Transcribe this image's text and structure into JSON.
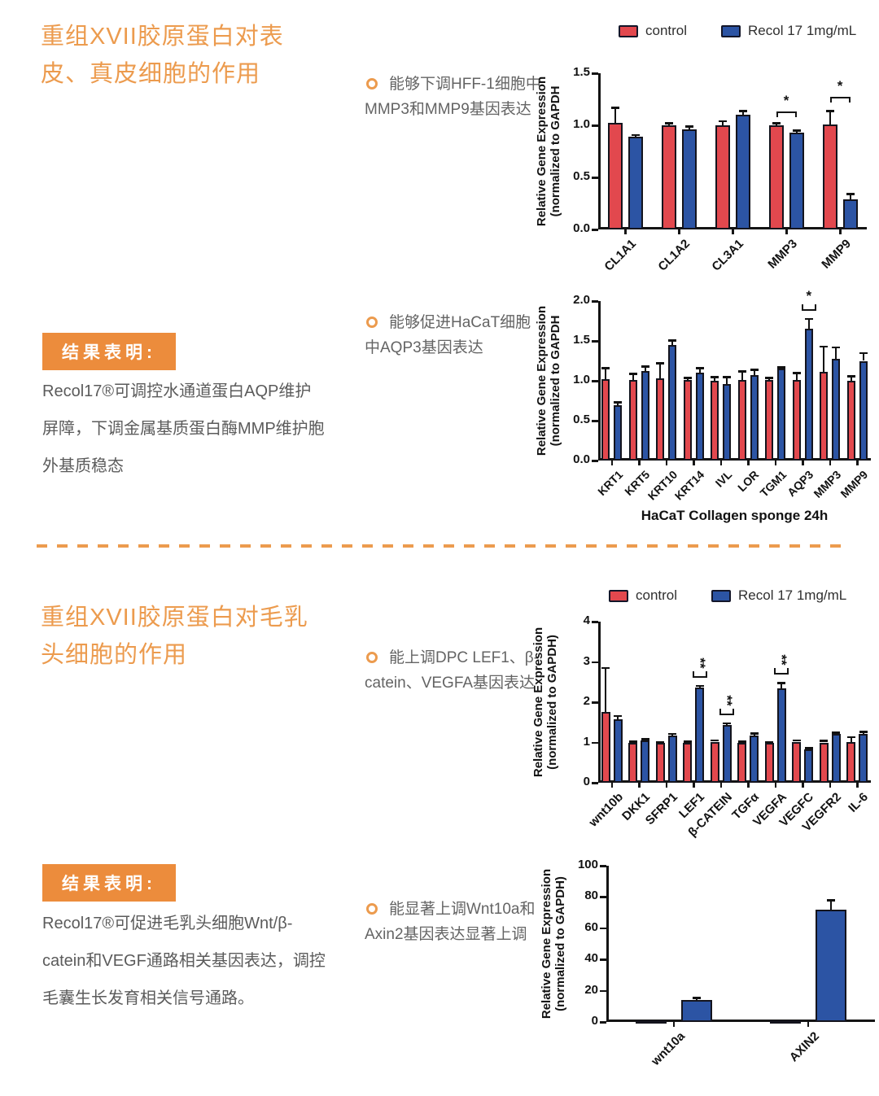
{
  "colors": {
    "accent": "#EC9B4E",
    "box_bg": "#EC8C3C",
    "control": "#E2484E",
    "recol": "#2C54A4"
  },
  "section1": {
    "title": "重组XVII胶原蛋白对表皮、真皮细胞的作用",
    "legend": {
      "control": "control",
      "recol": "Recol 17 1mg/mL"
    },
    "bullet1": "能够下调HFF-1细胞中MMP3和MMP9基因表达",
    "bullet2": "能够促进HaCaT细胞中AQP3基因表达",
    "result_label": "结果表明:",
    "result_text": "Recol17®可调控水通道蛋白AQP维护屏障，下调金属基质蛋白酶MMP维护胞外基质稳态"
  },
  "section2": {
    "title": "重组XVII胶原蛋白对毛乳头细胞的作用",
    "legend": {
      "control": "control",
      "recol": "Recol 17 1mg/mL"
    },
    "bullet3": "能上调DPC LEF1、β-catein、VEGFA基因表达",
    "bullet4": "能显著上调Wnt10a和Axin2基因表达显著上调",
    "result_label": "结果表明:",
    "result_text": "Recol17®可促进毛乳头细胞Wnt/β-catein和VEGF通路相关基因表达，调控毛囊生长发育相关信号通路。"
  },
  "chart_data": [
    {
      "id": "hff",
      "type": "bar",
      "categories": [
        "CL1A1",
        "CL1A2",
        "CL3A1",
        "MMP3",
        "MMP9"
      ],
      "series": [
        {
          "name": "control",
          "color": "#E2484E",
          "values": [
            1.02,
            1.0,
            1.0,
            1.0,
            1.01
          ],
          "errors": [
            0.15,
            0.02,
            0.04,
            0.02,
            0.13
          ]
        },
        {
          "name": "Recol 17 1mg/mL",
          "color": "#2C54A4",
          "values": [
            0.89,
            0.96,
            1.1,
            0.93,
            0.29
          ],
          "errors": [
            0.02,
            0.03,
            0.04,
            0.02,
            0.05
          ]
        }
      ],
      "ylabel_lines": [
        "Relative Gene Expression",
        "(normalized to GAPDH"
      ],
      "ylim": [
        0,
        1.5
      ],
      "yticks": [
        "0.0",
        "0.5",
        "1.0",
        "1.5"
      ],
      "grid": false,
      "significance": [
        {
          "category": "MMP3",
          "label": "*",
          "style": "pair",
          "y": 1.13
        },
        {
          "category": "MMP9",
          "label": "*",
          "style": "pair",
          "y": 1.27
        }
      ]
    },
    {
      "id": "hacat",
      "type": "bar",
      "categories": [
        "KRT1",
        "KRT5",
        "KRT10",
        "KRT14",
        "IVL",
        "LOR",
        "TGM1",
        "AQP3",
        "MMP3",
        "MMP9"
      ],
      "series": [
        {
          "name": "control",
          "color": "#E2484E",
          "values": [
            1.02,
            1.01,
            1.03,
            1.01,
            1.0,
            1.01,
            1.01,
            1.01,
            1.11,
            1.0
          ],
          "errors": [
            0.14,
            0.08,
            0.19,
            0.03,
            0.05,
            0.11,
            0.03,
            0.09,
            0.32,
            0.06
          ]
        },
        {
          "name": "Recol 17 1mg/mL",
          "color": "#2C54A4",
          "values": [
            0.69,
            1.12,
            1.45,
            1.1,
            0.96,
            1.07,
            1.15,
            1.65,
            1.28,
            1.25
          ],
          "errors": [
            0.04,
            0.06,
            0.06,
            0.06,
            0.09,
            0.07,
            0.02,
            0.13,
            0.14,
            0.1
          ]
        }
      ],
      "ylabel_lines": [
        "Relative Gene Expression",
        "(normalized to GAPDH"
      ],
      "xlabel": "HaCaT  Collagen sponge 24h",
      "ylim": [
        0,
        2.0
      ],
      "yticks": [
        "0.0",
        "0.5",
        "1.0",
        "1.5",
        "2.0"
      ],
      "grid": false,
      "significance": [
        {
          "category": "AQP3",
          "label": "*",
          "style": "above"
        }
      ]
    },
    {
      "id": "dpc",
      "type": "bar",
      "categories": [
        "wnt10b",
        "DKK1",
        "SFRP1",
        "LEF1",
        "β-CATEIN",
        "TGFα",
        "VEGFA",
        "VEGFC",
        "VEGFR2",
        "IL-6"
      ],
      "series": [
        {
          "name": "control",
          "color": "#E2484E",
          "values": [
            1.75,
            1.0,
            1.0,
            1.0,
            1.02,
            1.0,
            1.0,
            1.02,
            1.0,
            1.02
          ],
          "errors": [
            1.1,
            0.03,
            0.02,
            0.03,
            0.04,
            0.03,
            0.02,
            0.04,
            0.05,
            0.12
          ]
        },
        {
          "name": "Recol 17 1mg/mL",
          "color": "#2C54A4",
          "values": [
            1.58,
            1.05,
            1.17,
            2.37,
            1.43,
            1.17,
            2.35,
            0.82,
            1.22,
            1.22
          ],
          "errors": [
            0.08,
            0.04,
            0.05,
            0.04,
            0.05,
            0.06,
            0.13,
            0.04,
            0.03,
            0.05
          ]
        }
      ],
      "ylabel_lines": [
        "Relative Gene Expression",
        "(normalized to GAPDH)"
      ],
      "ylim": [
        0,
        4
      ],
      "yticks": [
        "0",
        "1",
        "2",
        "3",
        "4"
      ],
      "grid": false,
      "significance": [
        {
          "category": "LEF1",
          "label": "**",
          "style": "above-rotated"
        },
        {
          "category": "β-CATEIN",
          "label": "**",
          "style": "above-rotated"
        },
        {
          "category": "VEGFA",
          "label": "**",
          "style": "above-rotated"
        }
      ]
    },
    {
      "id": "wnt",
      "type": "bar",
      "categories": [
        "wnt10a",
        "AXIN2"
      ],
      "series": [
        {
          "name": "control",
          "color": "#E2484E",
          "values": [
            1,
            1
          ],
          "errors": [
            0,
            0
          ]
        },
        {
          "name": "Recol 17 1mg/mL",
          "color": "#2C54A4",
          "values": [
            14,
            72
          ],
          "errors": [
            1.5,
            6
          ]
        }
      ],
      "ylabel_lines": [
        "Relative Gene Expression",
        "(normalized to GAPDH)"
      ],
      "ylim": [
        0,
        100
      ],
      "yticks": [
        "0",
        "20",
        "40",
        "60",
        "80",
        "100"
      ],
      "grid": false,
      "significance": []
    }
  ]
}
